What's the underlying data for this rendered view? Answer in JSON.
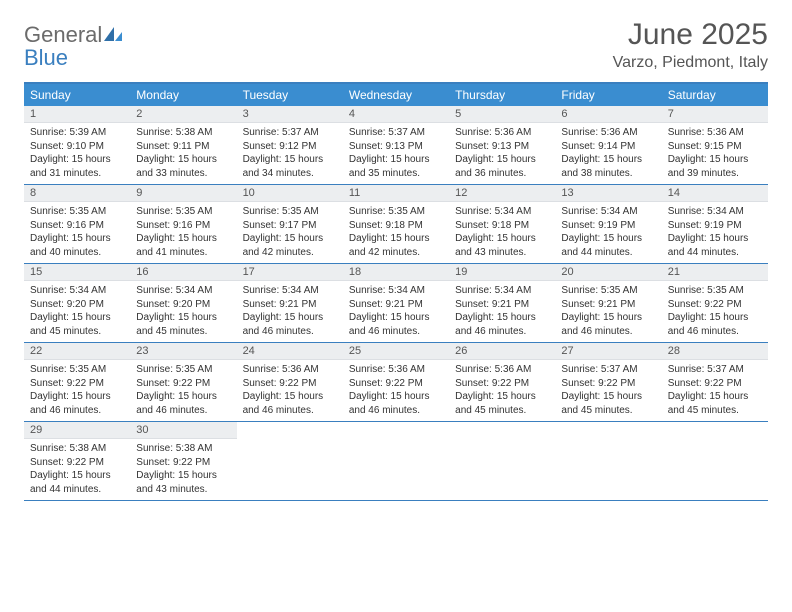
{
  "logo": {
    "text1": "General",
    "text2": "Blue"
  },
  "title": "June 2025",
  "location": "Varzo, Piedmont, Italy",
  "colors": {
    "header_bg": "#3a8dd0",
    "border": "#3a7fbf",
    "daynum_bg": "#eceef0",
    "text": "#333333"
  },
  "day_names": [
    "Sunday",
    "Monday",
    "Tuesday",
    "Wednesday",
    "Thursday",
    "Friday",
    "Saturday"
  ],
  "weeks": [
    [
      {
        "n": "1",
        "sr": "5:39 AM",
        "ss": "9:10 PM",
        "dl": "15 hours and 31 minutes."
      },
      {
        "n": "2",
        "sr": "5:38 AM",
        "ss": "9:11 PM",
        "dl": "15 hours and 33 minutes."
      },
      {
        "n": "3",
        "sr": "5:37 AM",
        "ss": "9:12 PM",
        "dl": "15 hours and 34 minutes."
      },
      {
        "n": "4",
        "sr": "5:37 AM",
        "ss": "9:13 PM",
        "dl": "15 hours and 35 minutes."
      },
      {
        "n": "5",
        "sr": "5:36 AM",
        "ss": "9:13 PM",
        "dl": "15 hours and 36 minutes."
      },
      {
        "n": "6",
        "sr": "5:36 AM",
        "ss": "9:14 PM",
        "dl": "15 hours and 38 minutes."
      },
      {
        "n": "7",
        "sr": "5:36 AM",
        "ss": "9:15 PM",
        "dl": "15 hours and 39 minutes."
      }
    ],
    [
      {
        "n": "8",
        "sr": "5:35 AM",
        "ss": "9:16 PM",
        "dl": "15 hours and 40 minutes."
      },
      {
        "n": "9",
        "sr": "5:35 AM",
        "ss": "9:16 PM",
        "dl": "15 hours and 41 minutes."
      },
      {
        "n": "10",
        "sr": "5:35 AM",
        "ss": "9:17 PM",
        "dl": "15 hours and 42 minutes."
      },
      {
        "n": "11",
        "sr": "5:35 AM",
        "ss": "9:18 PM",
        "dl": "15 hours and 42 minutes."
      },
      {
        "n": "12",
        "sr": "5:34 AM",
        "ss": "9:18 PM",
        "dl": "15 hours and 43 minutes."
      },
      {
        "n": "13",
        "sr": "5:34 AM",
        "ss": "9:19 PM",
        "dl": "15 hours and 44 minutes."
      },
      {
        "n": "14",
        "sr": "5:34 AM",
        "ss": "9:19 PM",
        "dl": "15 hours and 44 minutes."
      }
    ],
    [
      {
        "n": "15",
        "sr": "5:34 AM",
        "ss": "9:20 PM",
        "dl": "15 hours and 45 minutes."
      },
      {
        "n": "16",
        "sr": "5:34 AM",
        "ss": "9:20 PM",
        "dl": "15 hours and 45 minutes."
      },
      {
        "n": "17",
        "sr": "5:34 AM",
        "ss": "9:21 PM",
        "dl": "15 hours and 46 minutes."
      },
      {
        "n": "18",
        "sr": "5:34 AM",
        "ss": "9:21 PM",
        "dl": "15 hours and 46 minutes."
      },
      {
        "n": "19",
        "sr": "5:34 AM",
        "ss": "9:21 PM",
        "dl": "15 hours and 46 minutes."
      },
      {
        "n": "20",
        "sr": "5:35 AM",
        "ss": "9:21 PM",
        "dl": "15 hours and 46 minutes."
      },
      {
        "n": "21",
        "sr": "5:35 AM",
        "ss": "9:22 PM",
        "dl": "15 hours and 46 minutes."
      }
    ],
    [
      {
        "n": "22",
        "sr": "5:35 AM",
        "ss": "9:22 PM",
        "dl": "15 hours and 46 minutes."
      },
      {
        "n": "23",
        "sr": "5:35 AM",
        "ss": "9:22 PM",
        "dl": "15 hours and 46 minutes."
      },
      {
        "n": "24",
        "sr": "5:36 AM",
        "ss": "9:22 PM",
        "dl": "15 hours and 46 minutes."
      },
      {
        "n": "25",
        "sr": "5:36 AM",
        "ss": "9:22 PM",
        "dl": "15 hours and 46 minutes."
      },
      {
        "n": "26",
        "sr": "5:36 AM",
        "ss": "9:22 PM",
        "dl": "15 hours and 45 minutes."
      },
      {
        "n": "27",
        "sr": "5:37 AM",
        "ss": "9:22 PM",
        "dl": "15 hours and 45 minutes."
      },
      {
        "n": "28",
        "sr": "5:37 AM",
        "ss": "9:22 PM",
        "dl": "15 hours and 45 minutes."
      }
    ],
    [
      {
        "n": "29",
        "sr": "5:38 AM",
        "ss": "9:22 PM",
        "dl": "15 hours and 44 minutes."
      },
      {
        "n": "30",
        "sr": "5:38 AM",
        "ss": "9:22 PM",
        "dl": "15 hours and 43 minutes."
      },
      null,
      null,
      null,
      null,
      null
    ]
  ],
  "labels": {
    "sunrise": "Sunrise:",
    "sunset": "Sunset:",
    "daylight": "Daylight:"
  }
}
